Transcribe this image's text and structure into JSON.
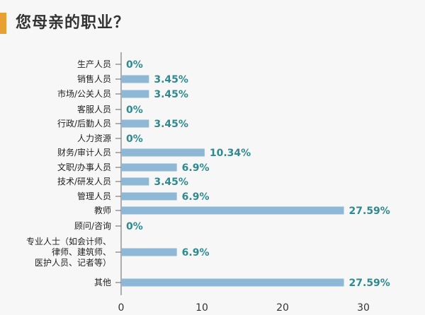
{
  "title": "您母亲的职业？",
  "colors": {
    "accent": "#e8a033",
    "bar": "#8fb8d6",
    "value_label": "#2f8a8f",
    "axis": "#666666"
  },
  "chart_data": {
    "type": "bar",
    "orientation": "horizontal",
    "title": "您母亲的职业？",
    "categories": [
      [
        "生产人员"
      ],
      [
        "销售人员"
      ],
      [
        "市场/公关人员"
      ],
      [
        "客服人员"
      ],
      [
        "行政/后勤人员"
      ],
      [
        "人力资源"
      ],
      [
        "财务/审计人员"
      ],
      [
        "文职/办事人员"
      ],
      [
        "技术/研发人员"
      ],
      [
        "管理人员"
      ],
      [
        "教师"
      ],
      [
        "顾问/咨询"
      ],
      [
        "专业人士（如会计师、",
        "律师、建筑师、",
        "医护人员、记者等）"
      ],
      [
        "其他"
      ]
    ],
    "values": [
      0,
      3.45,
      3.45,
      0,
      3.45,
      0,
      10.34,
      6.9,
      3.45,
      6.9,
      27.59,
      0,
      6.9,
      27.59
    ],
    "value_labels": [
      "0%",
      "3.45%",
      "3.45%",
      "0%",
      "3.45%",
      "0%",
      "10.34%",
      "6.9%",
      "3.45%",
      "6.9%",
      "27.59%",
      "0%",
      "6.9%",
      "27.59%"
    ],
    "xlim": [
      0,
      30
    ],
    "xticks": [
      0,
      10,
      20,
      30
    ],
    "grid": false,
    "legend": "none"
  }
}
